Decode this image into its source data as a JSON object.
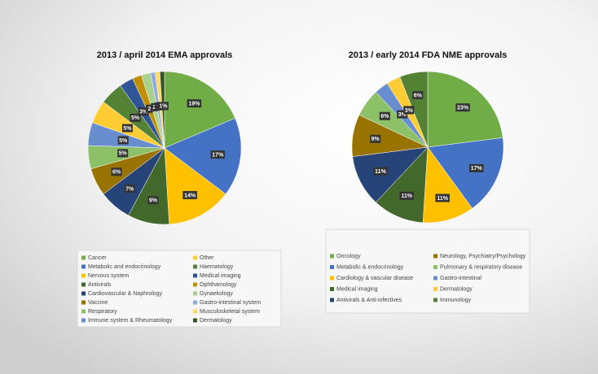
{
  "chart_data": [
    {
      "type": "pie",
      "title": "2013 / april 2014 EMA approvals",
      "categories": [
        "Cancer",
        "Metabolic and endocrinology",
        "Nervous system",
        "Antivirals",
        "Cardiovascular & Naphrology",
        "Vaccine",
        "Respiratory",
        "Immune system & Rheumatology",
        "Other",
        "Haematology",
        "Medical imaging",
        "Ophthamology",
        "Gynaekology",
        "Gastro-intestinal system",
        "Musculoskeletal system",
        "Dermatology"
      ],
      "values": [
        19,
        17,
        14,
        9,
        7,
        6,
        5,
        5,
        5,
        5,
        3,
        2,
        2,
        1,
        1,
        1
      ],
      "value_labels": [
        "19%",
        "17%",
        "14%",
        "9%",
        "7%",
        "6%",
        "5%",
        "5%",
        "5%",
        "5%",
        "3%",
        "2",
        "2",
        "1",
        "1",
        "1%"
      ],
      "colors": [
        "#70ad47",
        "#4472c4",
        "#ffc000",
        "#43682b",
        "#264478",
        "#997300",
        "#8cc168",
        "#698ed0",
        "#ffcd33",
        "#548235",
        "#2f5597",
        "#bf8f00",
        "#a9d18e",
        "#8faadc",
        "#ffd966",
        "#375623"
      ]
    },
    {
      "type": "pie",
      "title": "2013 / early 2014 FDA NME approvals",
      "categories": [
        "Oncology",
        "Metabolic & endocrinology",
        "Cardiology & vascular disease",
        "Medical imaging",
        "Antivirals & Anti-infectives",
        "Neurology, Psychiatry/Psychology",
        "Pulmonary & respiratory disease",
        "Gastro-intestinal",
        "Dermatology",
        "Immunology"
      ],
      "values": [
        23,
        17,
        11,
        11,
        11,
        9,
        6,
        3,
        3,
        6
      ],
      "value_labels": [
        "23%",
        "17%",
        "11%",
        "11%",
        "11%",
        "9%",
        "6%",
        "3%",
        "3%",
        "6%"
      ],
      "colors": [
        "#70ad47",
        "#4472c4",
        "#ffc000",
        "#43682b",
        "#264478",
        "#997300",
        "#8cc168",
        "#698ed0",
        "#ffcd33",
        "#548235"
      ]
    }
  ]
}
